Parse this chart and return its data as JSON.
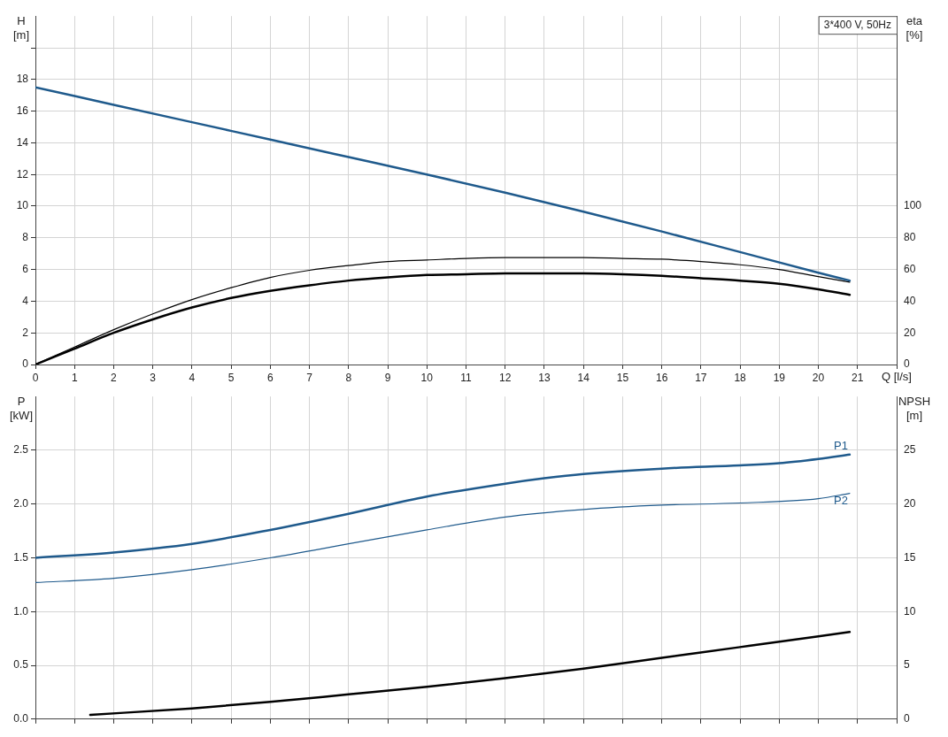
{
  "chart_data": [
    {
      "type": "line",
      "title": "3*400 V, 50Hz",
      "ylabel": "H [m]",
      "y2label": "eta [%]",
      "xlabel": "Q [l/s]",
      "xlim": [
        0,
        22
      ],
      "xticks": [
        0,
        1,
        2,
        3,
        4,
        5,
        6,
        7,
        8,
        9,
        10,
        11,
        12,
        13,
        14,
        15,
        16,
        17,
        18,
        19,
        20,
        21,
        {
          "value": 22,
          "label": null
        }
      ],
      "ylim": [
        0,
        22
      ],
      "yticks": [
        0,
        2,
        4,
        6,
        8,
        10,
        12,
        14,
        16,
        18,
        {
          "value": 20,
          "label": null
        }
      ],
      "y2lim": [
        0,
        220
      ],
      "y2ticks": [
        0,
        20,
        40,
        60,
        80,
        100
      ],
      "grid": true,
      "legend": false,
      "marker": "none",
      "line_style": "solid",
      "series": [
        {
          "color": "#1f5a8c",
          "x": [
            0,
            2,
            4,
            6,
            8,
            10,
            12,
            14,
            16,
            18,
            20,
            20.8
          ],
          "values": [
            17.5,
            16.4,
            15.3,
            14.2,
            13.1,
            12.0,
            10.85,
            9.65,
            8.4,
            7.1,
            5.8,
            5.3
          ]
        },
        {
          "color": "#000000",
          "axis": "y2",
          "x": [
            0,
            1,
            2,
            3,
            4,
            5,
            6,
            7,
            8,
            9,
            10,
            11,
            12,
            13,
            14,
            15,
            16,
            17,
            18,
            19,
            20,
            20.8
          ],
          "values": [
            0,
            11,
            22,
            32,
            41,
            48.5,
            55,
            59.5,
            62.5,
            65,
            66,
            67,
            67.5,
            67.5,
            67.5,
            67,
            66.5,
            65,
            63,
            60,
            55.5,
            52
          ]
        },
        {
          "color": "#000000",
          "axis": "y2",
          "x": [
            0,
            1,
            2,
            3,
            4,
            5,
            6,
            7,
            8,
            9,
            10,
            11,
            12,
            13,
            14,
            15,
            16,
            17,
            18,
            19,
            20,
            20.8
          ],
          "values": [
            0,
            10,
            20,
            28.5,
            36,
            42,
            46.5,
            50,
            53,
            55,
            56.5,
            57,
            57.5,
            57.5,
            57.5,
            57,
            56,
            54.5,
            53,
            51,
            47.5,
            44
          ]
        }
      ]
    },
    {
      "type": "line",
      "ylabel": "P [kW]",
      "y2label": "NPSH [m]",
      "xlim": [
        0,
        22
      ],
      "xticks": [
        0,
        1,
        2,
        3,
        4,
        5,
        6,
        7,
        8,
        9,
        10,
        11,
        12,
        13,
        14,
        15,
        16,
        17,
        18,
        19,
        20,
        21,
        22
      ],
      "ylim": [
        0,
        3
      ],
      "yticks": [
        {
          "value": 0,
          "label": "0.0"
        },
        0.5,
        {
          "value": 1,
          "label": "1.0"
        },
        1.5,
        {
          "value": 2,
          "label": "2.0"
        },
        2.5
      ],
      "y2lim": [
        0,
        30
      ],
      "y2ticks": [
        0,
        5,
        10,
        15,
        20,
        25
      ],
      "tick_labels": "y",
      "grid": true,
      "legend": false,
      "marker": "none",
      "line_style": "solid",
      "series": [
        {
          "name": "P1",
          "color": "#1f5a8c",
          "x": [
            0,
            2,
            4,
            6,
            8,
            10,
            12,
            13,
            14,
            16,
            18,
            19,
            20,
            20.8
          ],
          "values": [
            1.5,
            1.55,
            1.63,
            1.76,
            1.91,
            2.07,
            2.19,
            2.24,
            2.28,
            2.33,
            2.36,
            2.38,
            2.42,
            2.46
          ]
        },
        {
          "name": "P2",
          "color": "#1f5a8c",
          "x": [
            0,
            2,
            4,
            6,
            8,
            10,
            12,
            14,
            16,
            18,
            20,
            20.8
          ],
          "values": [
            1.27,
            1.31,
            1.39,
            1.5,
            1.63,
            1.76,
            1.88,
            1.95,
            1.99,
            2.01,
            2.05,
            2.1
          ]
        },
        {
          "color": "#000000",
          "axis": "y2",
          "x": [
            1.4,
            4,
            6,
            8,
            10,
            12,
            14,
            16,
            18,
            20,
            20.8
          ],
          "values": [
            0.4,
            1.0,
            1.6,
            2.3,
            3.0,
            3.8,
            4.7,
            5.7,
            6.7,
            7.7,
            8.1
          ]
        }
      ]
    }
  ]
}
